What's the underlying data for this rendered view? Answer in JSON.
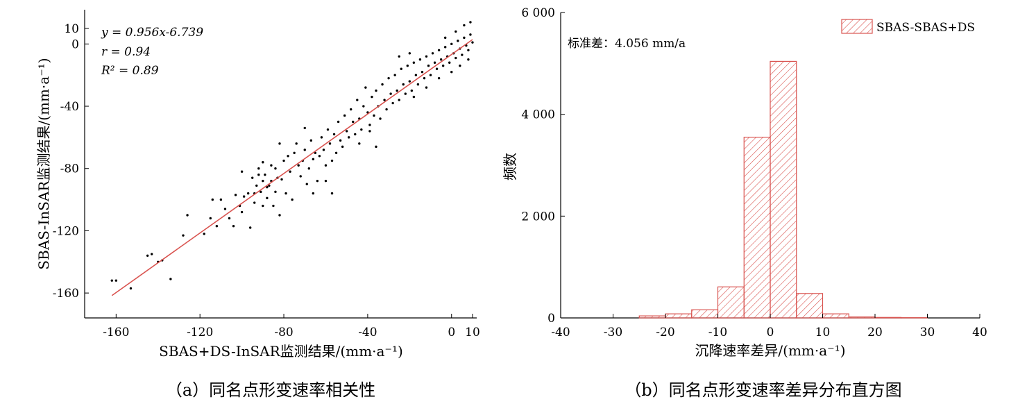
{
  "captions": {
    "a": "（a）同名点形变速率相关性",
    "b": "（b）同名点形变速率差异分布直方图"
  },
  "chart_data": [
    {
      "type": "scatter",
      "xlabel": "SBAS+DS-InSAR监测结果/(mm·a⁻¹)",
      "ylabel": "SBAS-InSAR监测结果/(mm·a⁻¹)",
      "xlim": [
        -175,
        12
      ],
      "ylim": [
        -176,
        22
      ],
      "xticks": [
        -160,
        -120,
        -80,
        -40,
        0,
        10
      ],
      "yticks": [
        10,
        0,
        -40,
        -80,
        -120,
        -160
      ],
      "annotations": [
        "y = 0.956x-6.739",
        "r = 0.94",
        "R² = 0.89"
      ],
      "fit_line": {
        "slope": 0.956,
        "intercept": -6.739,
        "x_range": [
          -162,
          10
        ],
        "color": "#d9534f"
      },
      "point_color": "#000000",
      "points": [
        [
          -162,
          -152
        ],
        [
          -160,
          -152
        ],
        [
          -153,
          -157
        ],
        [
          -145,
          -136
        ],
        [
          -143,
          -135
        ],
        [
          -140,
          -140
        ],
        [
          -138,
          -139
        ],
        [
          -134,
          -151
        ],
        [
          -128,
          -123
        ],
        [
          -126,
          -110
        ],
        [
          -118,
          -122
        ],
        [
          -115,
          -112
        ],
        [
          -114,
          -100
        ],
        [
          -112,
          -117
        ],
        [
          -110,
          -100
        ],
        [
          -108,
          -106
        ],
        [
          -106,
          -112
        ],
        [
          -104,
          -117
        ],
        [
          -103,
          -97
        ],
        [
          -101,
          -104
        ],
        [
          -100,
          -108
        ],
        [
          -99,
          -98
        ],
        [
          -97,
          -96
        ],
        [
          -96,
          -118
        ],
        [
          -95,
          -86
        ],
        [
          -94,
          -102
        ],
        [
          -93,
          -91
        ],
        [
          -92,
          -80
        ],
        [
          -91,
          -95
        ],
        [
          -90,
          -88
        ],
        [
          -89,
          -84
        ],
        [
          -88,
          -99
        ],
        [
          -87,
          -91
        ],
        [
          -86,
          -78
        ],
        [
          -85,
          -104
        ],
        [
          -84,
          -95
        ],
        [
          -83,
          -86
        ],
        [
          -82,
          -110
        ],
        [
          -81,
          -87
        ],
        [
          -80,
          -75
        ],
        [
          -79,
          -96
        ],
        [
          -78,
          -72
        ],
        [
          -77,
          -82
        ],
        [
          -76,
          -100
        ],
        [
          -75,
          -70
        ],
        [
          -74,
          -64
        ],
        [
          -73,
          -78
        ],
        [
          -72,
          -85
        ],
        [
          -71,
          -75
        ],
        [
          -70,
          -68
        ],
        [
          -69,
          -90
        ],
        [
          -68,
          -80
        ],
        [
          -67,
          -62
        ],
        [
          -66,
          -74
        ],
        [
          -65,
          -70
        ],
        [
          -64,
          -88
        ],
        [
          -63,
          -72
        ],
        [
          -62,
          -60
        ],
        [
          -61,
          -68
        ],
        [
          -60,
          -78
        ],
        [
          -59,
          -55
        ],
        [
          -58,
          -64
        ],
        [
          -57,
          -75
        ],
        [
          -56,
          -58
        ],
        [
          -55,
          -70
        ],
        [
          -54,
          -50
        ],
        [
          -53,
          -62
        ],
        [
          -52,
          -66
        ],
        [
          -51,
          -46
        ],
        [
          -50,
          -56
        ],
        [
          -49,
          -60
        ],
        [
          -48,
          -42
        ],
        [
          -47,
          -50
        ],
        [
          -46,
          -58
        ],
        [
          -45,
          -36
        ],
        [
          -44,
          -48
        ],
        [
          -43,
          -55
        ],
        [
          -42,
          -40
        ],
        [
          -41,
          -28
        ],
        [
          -40,
          -44
        ],
        [
          -39,
          -52
        ],
        [
          -38,
          -34
        ],
        [
          -37,
          -46
        ],
        [
          -36,
          -30
        ],
        [
          -35,
          -40
        ],
        [
          -34,
          -48
        ],
        [
          -33,
          -26
        ],
        [
          -32,
          -36
        ],
        [
          -31,
          -42
        ],
        [
          -30,
          -22
        ],
        [
          -29,
          -32
        ],
        [
          -28,
          -38
        ],
        [
          -27,
          -20
        ],
        [
          -26,
          -30
        ],
        [
          -25,
          -36
        ],
        [
          -24,
          -16
        ],
        [
          -23,
          -26
        ],
        [
          -22,
          -32
        ],
        [
          -21,
          -14
        ],
        [
          -20,
          -24
        ],
        [
          -19,
          -30
        ],
        [
          -18,
          -12
        ],
        [
          -17,
          -20
        ],
        [
          -16,
          -26
        ],
        [
          -15,
          -10
        ],
        [
          -14,
          -18
        ],
        [
          -13,
          -22
        ],
        [
          -12,
          -8
        ],
        [
          -11,
          -14
        ],
        [
          -10,
          -20
        ],
        [
          -9,
          -6
        ],
        [
          -8,
          -12
        ],
        [
          -7,
          -16
        ],
        [
          -6,
          -4
        ],
        [
          -5,
          -10
        ],
        [
          -4,
          -14
        ],
        [
          -3,
          -2
        ],
        [
          -2,
          -8
        ],
        [
          -1,
          -12
        ],
        [
          0,
          0
        ],
        [
          1,
          -6
        ],
        [
          2,
          -9
        ],
        [
          3,
          2
        ],
        [
          4,
          -3
        ],
        [
          5,
          -7
        ],
        [
          6,
          4
        ],
        [
          7,
          -1
        ],
        [
          8,
          -4
        ],
        [
          9,
          6
        ],
        [
          10,
          1
        ],
        [
          -57,
          -96
        ],
        [
          -60,
          -88
        ],
        [
          -66,
          -96
        ],
        [
          -44,
          -64
        ],
        [
          -39,
          -56
        ],
        [
          -36,
          -66
        ],
        [
          -70,
          -54
        ],
        [
          -82,
          -64
        ],
        [
          -90,
          -76
        ],
        [
          -100,
          -82
        ],
        [
          -20,
          -6
        ],
        [
          -25,
          -8
        ],
        [
          -18,
          -34
        ],
        [
          -12,
          -28
        ],
        [
          -6,
          -22
        ],
        [
          0,
          -18
        ],
        [
          4,
          -14
        ],
        [
          8,
          -10
        ],
        [
          -3,
          4
        ],
        [
          2,
          8
        ],
        [
          6,
          12
        ],
        [
          9,
          14
        ],
        [
          -88,
          -92
        ],
        [
          -92,
          -84
        ],
        [
          -86,
          -88
        ],
        [
          -94,
          -96
        ],
        [
          -90,
          -104
        ],
        [
          -84,
          -80
        ]
      ]
    },
    {
      "type": "bar",
      "legend": [
        "SBAS-SBAS+DS"
      ],
      "legend_placement": "top-right",
      "annotation": "标准差：4.056 mm/a",
      "xlabel": "沉降速率差异/(mm·a⁻¹)",
      "ylabel": "频数",
      "xlim": [
        -40,
        40
      ],
      "ylim": [
        0,
        6000
      ],
      "xticks": [
        -40,
        -30,
        -20,
        -10,
        0,
        10,
        20,
        30,
        40
      ],
      "yticks": [
        0,
        2000,
        4000,
        6000
      ],
      "ytick_labels": [
        "0",
        "2 000",
        "4 000",
        "6 000"
      ],
      "bin_width": 5,
      "bins": [
        -25,
        -20,
        -15,
        -10,
        -5,
        0,
        5,
        10,
        15,
        20,
        25
      ],
      "values": [
        40,
        80,
        160,
        610,
        3550,
        5040,
        480,
        80,
        20,
        10,
        5
      ],
      "bar_color": "#d9534f"
    }
  ]
}
